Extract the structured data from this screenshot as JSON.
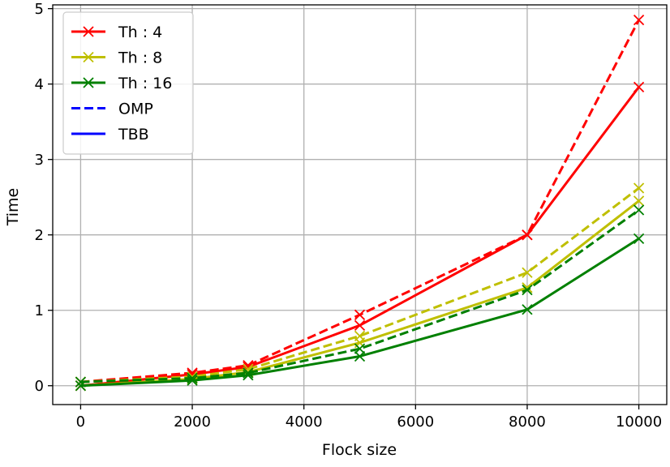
{
  "chart_data": {
    "type": "line",
    "title": "",
    "xlabel": "Flock size",
    "ylabel": "Time",
    "xlim": [
      -500,
      10500
    ],
    "ylim": [
      -0.25,
      5.05
    ],
    "xticks": [
      0,
      2000,
      4000,
      6000,
      8000,
      10000
    ],
    "xtick_labels": [
      "0",
      "2000",
      "4000",
      "6000",
      "8000",
      "10000"
    ],
    "yticks": [
      0,
      1,
      2,
      3,
      4,
      5
    ],
    "ytick_labels": [
      "0",
      "1",
      "2",
      "3",
      "4",
      "5"
    ],
    "grid": true,
    "legend_position": "top-left",
    "legend": [
      {
        "label": "Th : 4",
        "color": "#ff0000",
        "style": "solid",
        "marker": "x"
      },
      {
        "label": "Th : 8",
        "color": "#bfbf00",
        "style": "solid",
        "marker": "x"
      },
      {
        "label": "Th : 16",
        "color": "#008000",
        "style": "solid",
        "marker": "x"
      },
      {
        "label": "OMP",
        "color": "#0000ff",
        "style": "dashed",
        "marker": "none"
      },
      {
        "label": "TBB",
        "color": "#0000ff",
        "style": "solid",
        "marker": "none"
      }
    ],
    "x": [
      0,
      2000,
      3000,
      5000,
      8000,
      10000
    ],
    "series": [
      {
        "threads": "Th : 4",
        "impl": "OMP",
        "color": "#ff0000",
        "dashed": true,
        "values": [
          0.05,
          0.17,
          0.27,
          0.94,
          2.0,
          4.85
        ]
      },
      {
        "threads": "Th : 4",
        "impl": "TBB",
        "color": "#ff0000",
        "dashed": false,
        "values": [
          0.0,
          0.15,
          0.25,
          0.8,
          2.0,
          3.96
        ]
      },
      {
        "threads": "Th : 8",
        "impl": "OMP",
        "color": "#bfbf00",
        "dashed": true,
        "values": [
          0.05,
          0.12,
          0.22,
          0.66,
          1.5,
          2.62
        ]
      },
      {
        "threads": "Th : 8",
        "impl": "TBB",
        "color": "#bfbf00",
        "dashed": false,
        "values": [
          0.0,
          0.09,
          0.18,
          0.57,
          1.3,
          2.45
        ]
      },
      {
        "threads": "Th : 16",
        "impl": "OMP",
        "color": "#008000",
        "dashed": true,
        "values": [
          0.05,
          0.1,
          0.17,
          0.49,
          1.27,
          2.33
        ]
      },
      {
        "threads": "Th : 16",
        "impl": "TBB",
        "color": "#008000",
        "dashed": false,
        "values": [
          0.0,
          0.07,
          0.14,
          0.39,
          1.01,
          1.95
        ]
      }
    ]
  }
}
